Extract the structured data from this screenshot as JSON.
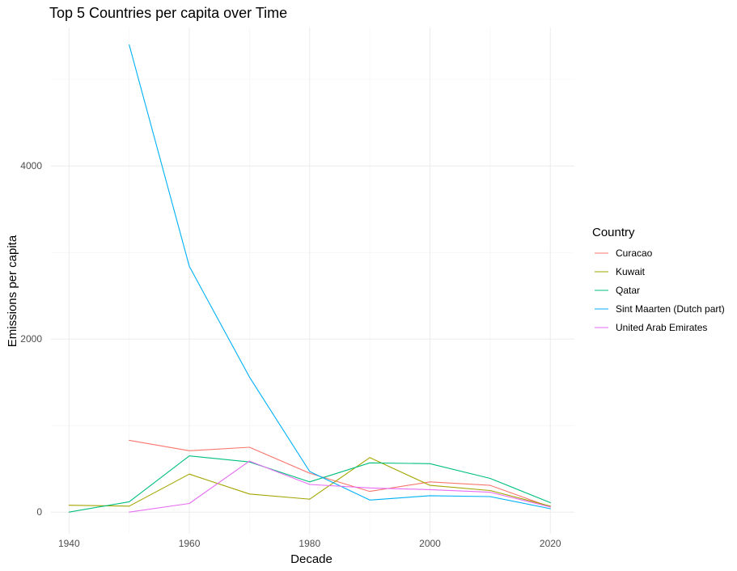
{
  "chart_data": {
    "type": "line",
    "title": "Top 5 Countries per capita over Time",
    "xlabel": "Decade",
    "ylabel": "Emissions per capita",
    "xlim": [
      1937,
      2024
    ],
    "ylim": [
      -250,
      5600
    ],
    "x_ticks": [
      1940,
      1960,
      1980,
      2000,
      2020
    ],
    "x_tick_labels": [
      "1940",
      "1960",
      "1980",
      "2000",
      "2020"
    ],
    "x_minor_ticks": [
      1950,
      1970,
      1990,
      2010
    ],
    "y_ticks": [
      0,
      2000,
      4000
    ],
    "y_tick_labels": [
      "0",
      "2000",
      "4000"
    ],
    "y_minor_ticks": [
      1000,
      3000,
      5000
    ],
    "grid": true,
    "legend": {
      "title": "Country",
      "position": "right"
    },
    "series": [
      {
        "name": "Curacao",
        "color": "#F8766D",
        "x": [
          1950,
          1960,
          1970,
          1980,
          1990,
          2000,
          2010,
          2020
        ],
        "values": [
          830,
          710,
          750,
          450,
          240,
          350,
          310,
          60
        ]
      },
      {
        "name": "Kuwait",
        "color": "#A3A500",
        "x": [
          1940,
          1950,
          1960,
          1970,
          1980,
          1990,
          2000,
          2010,
          2020
        ],
        "values": [
          80,
          70,
          440,
          210,
          150,
          630,
          310,
          250,
          70
        ]
      },
      {
        "name": "Qatar",
        "color": "#00BF7D",
        "x": [
          1940,
          1950,
          1960,
          1970,
          1980,
          1990,
          2000,
          2010,
          2020
        ],
        "values": [
          0,
          120,
          650,
          580,
          350,
          570,
          560,
          390,
          110
        ]
      },
      {
        "name": "Sint Maarten (Dutch part)",
        "color": "#00B0F6",
        "x": [
          1950,
          1960,
          1970,
          1980,
          1990,
          2000,
          2010,
          2020
        ],
        "values": [
          5400,
          2840,
          1560,
          470,
          140,
          190,
          180,
          40
        ]
      },
      {
        "name": "United Arab Emirates",
        "color": "#E76BF3",
        "x": [
          1950,
          1960,
          1970,
          1980,
          1990,
          2000,
          2010,
          2020
        ],
        "values": [
          0,
          100,
          590,
          320,
          280,
          260,
          230,
          60
        ]
      }
    ]
  }
}
